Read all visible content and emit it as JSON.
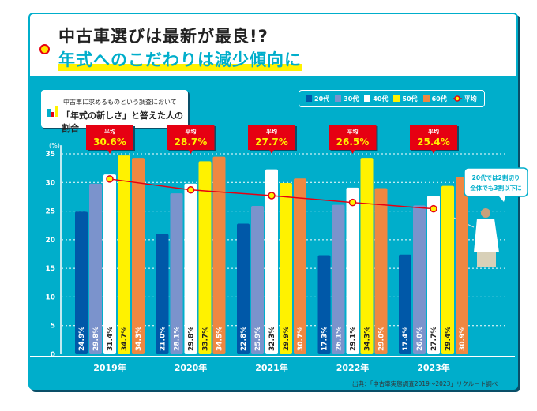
{
  "header": {
    "title": "中古車選びは最新が最良!?",
    "subtitle": "年式へのこだわりは減少傾向に"
  },
  "subtitle_box": {
    "line1": "中古車に求めるものという調査において",
    "line2": "「年式の新しさ」と答えた人の割合"
  },
  "callout": {
    "line1": "20代では2割切り",
    "line2": "全体でも3割以下に"
  },
  "source": "出典：「中古車実態調査2019〜2023」リクルート調べ",
  "chart_data": {
    "type": "bar",
    "ylabel": "(%)",
    "ylim": [
      0,
      35
    ],
    "yticks": [
      0,
      5,
      10,
      15,
      20,
      25,
      30,
      35
    ],
    "grid": true,
    "legend_position": "top-right",
    "categories": [
      "2019年",
      "2020年",
      "2021年",
      "2022年",
      "2023年"
    ],
    "series": [
      {
        "name": "20代",
        "color": "#0058a8",
        "values": [
          24.9,
          21.0,
          22.8,
          17.3,
          17.4
        ]
      },
      {
        "name": "30代",
        "color": "#7b93cc",
        "values": [
          29.8,
          28.1,
          25.9,
          26.1,
          26.0
        ]
      },
      {
        "name": "40代",
        "color": "#ffffff",
        "values": [
          31.4,
          29.8,
          32.3,
          29.1,
          27.7
        ]
      },
      {
        "name": "50代",
        "color": "#fff200",
        "values": [
          34.7,
          33.7,
          29.9,
          34.3,
          29.4
        ]
      },
      {
        "name": "60代",
        "color": "#ef8741",
        "values": [
          34.3,
          34.5,
          30.7,
          29.0,
          30.9
        ]
      }
    ],
    "average": {
      "name": "平均",
      "label": "平均",
      "color": "#e60012",
      "type": "line",
      "values": [
        30.6,
        28.7,
        27.7,
        26.5,
        25.4
      ],
      "display": [
        "30.6",
        "28.7",
        "27.7",
        "26.5",
        "25.4"
      ],
      "unit": "%"
    }
  }
}
